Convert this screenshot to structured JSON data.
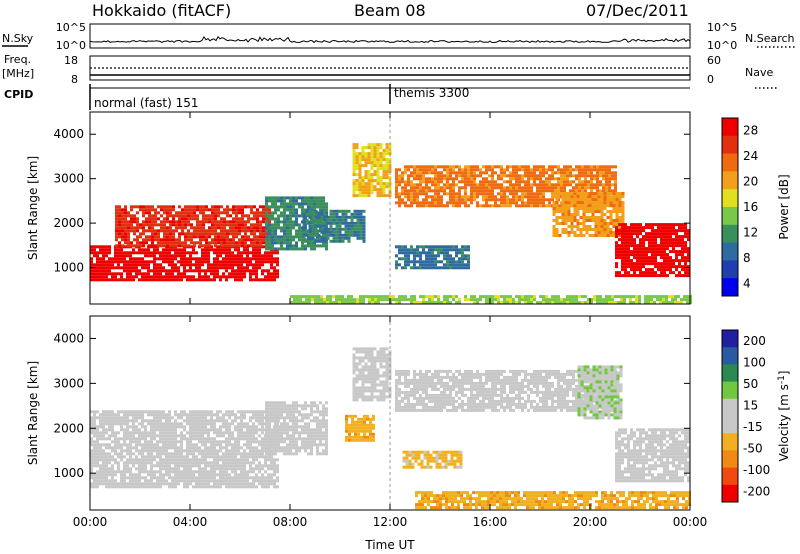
{
  "header": {
    "station": "Hokkaido (fitACF)",
    "beam": "Beam 08",
    "date": "07/Dec/2011"
  },
  "top_panels": {
    "nsky_label": "N.Sky",
    "nsky_ticks": [
      "10^5",
      "10^0"
    ],
    "nsearch_label": "N.Search",
    "nsearch_ticks": [
      "10^5",
      "10^0"
    ],
    "freq_label_1": "Freq.",
    "freq_label_2": "[MHz]",
    "freq_ticks": [
      "18",
      "8"
    ],
    "nave_label": "Nave",
    "nave_ticks": [
      "60",
      "0"
    ],
    "cpid_label": "CPID",
    "cpid_segments": [
      {
        "label": "normal (fast) 151",
        "start_hour": 0
      },
      {
        "label": "themis 3300",
        "start_hour": 12
      }
    ]
  },
  "x_axis": {
    "label": "Time UT",
    "ticks": [
      "00:00",
      "04:00",
      "08:00",
      "12:00",
      "16:00",
      "20:00",
      "00:00"
    ],
    "range_hours": [
      0,
      24
    ]
  },
  "colors": {
    "power_scale": [
      "#0000ee",
      "#1f3fb0",
      "#2f6aa0",
      "#3a8f5a",
      "#7ac84a",
      "#dfe020",
      "#f2a01c",
      "#f06a10",
      "#e03010",
      "#ee0000"
    ],
    "velocity_scale": [
      "#ee0000",
      "#f04a10",
      "#f08a14",
      "#f2b020",
      "#c8c8c8",
      "#c8c8c8",
      "#70c840",
      "#2a8a50",
      "#2a5aa0",
      "#2020a0"
    ],
    "ground_scatter": "#b4b4b4"
  },
  "chart_data": [
    {
      "type": "heatmap",
      "title": "Power",
      "xlabel": "",
      "ylabel": "Slant Range [km]",
      "xlim": [
        0,
        24
      ],
      "ylim": [
        180,
        4500
      ],
      "y_ticks": [
        "1000",
        "2000",
        "3000",
        "4000"
      ],
      "colorbar_label": "Power [dB]",
      "colorbar_ticks": [
        "28",
        "24",
        "20",
        "16",
        "12",
        "8",
        "4"
      ],
      "colorbar_range": [
        0,
        30
      ],
      "regions": [
        {
          "t0": 0.0,
          "t1": 7.5,
          "r0": 700,
          "r1": 1500,
          "value": 29
        },
        {
          "t0": 1.0,
          "t1": 7.2,
          "r0": 1500,
          "r1": 2400,
          "value": 26
        },
        {
          "t0": 7.0,
          "t1": 9.5,
          "r0": 1400,
          "r1": 2600,
          "value": 10
        },
        {
          "t0": 8.5,
          "t1": 11.0,
          "r0": 1600,
          "r1": 2300,
          "value": 9
        },
        {
          "t0": 10.5,
          "t1": 12.0,
          "r0": 2600,
          "r1": 3800,
          "value": 18
        },
        {
          "t0": 12.2,
          "t1": 15.2,
          "r0": 1000,
          "r1": 1500,
          "value": 8
        },
        {
          "t0": 12.2,
          "t1": 21.0,
          "r0": 2400,
          "r1": 3300,
          "value": 22
        },
        {
          "t0": 18.5,
          "t1": 21.3,
          "r0": 1700,
          "r1": 2700,
          "value": 20
        },
        {
          "t0": 21.0,
          "t1": 24.0,
          "r0": 800,
          "r1": 2000,
          "value": 29
        },
        {
          "t0": 8.0,
          "t1": 24.0,
          "r0": 200,
          "r1": 380,
          "value": 14
        }
      ]
    },
    {
      "type": "heatmap",
      "title": "Velocity",
      "xlabel": "Time UT",
      "ylabel": "Slant Range [km]",
      "xlim": [
        0,
        24
      ],
      "ylim": [
        180,
        4500
      ],
      "y_ticks": [
        "1000",
        "2000",
        "3000",
        "4000"
      ],
      "colorbar_label": "Velocity [m s^-1]",
      "colorbar_ticks": [
        "200",
        "100",
        "50",
        "15",
        "-15",
        "-50",
        "-100",
        "-200"
      ],
      "colorbar_range": [
        -250,
        250
      ],
      "regions": [
        {
          "t0": 0.0,
          "t1": 7.5,
          "r0": 700,
          "r1": 2400,
          "value": 0
        },
        {
          "t0": 7.0,
          "t1": 9.5,
          "r0": 1400,
          "r1": 2600,
          "value": 0
        },
        {
          "t0": 10.2,
          "t1": 11.3,
          "r0": 1700,
          "r1": 2300,
          "value": -80
        },
        {
          "t0": 10.5,
          "t1": 12.0,
          "r0": 2600,
          "r1": 3800,
          "value": 0
        },
        {
          "t0": 12.5,
          "t1": 14.8,
          "r0": 1100,
          "r1": 1500,
          "value": -70
        },
        {
          "t0": 12.2,
          "t1": 21.0,
          "r0": 2400,
          "r1": 3300,
          "value": 0
        },
        {
          "t0": 19.5,
          "t1": 21.2,
          "r0": 2200,
          "r1": 3400,
          "value": 40
        },
        {
          "t0": 21.0,
          "t1": 24.0,
          "r0": 800,
          "r1": 2000,
          "value": 0
        },
        {
          "t0": 13.0,
          "t1": 24.0,
          "r0": 200,
          "r1": 600,
          "value": -80
        }
      ]
    }
  ]
}
